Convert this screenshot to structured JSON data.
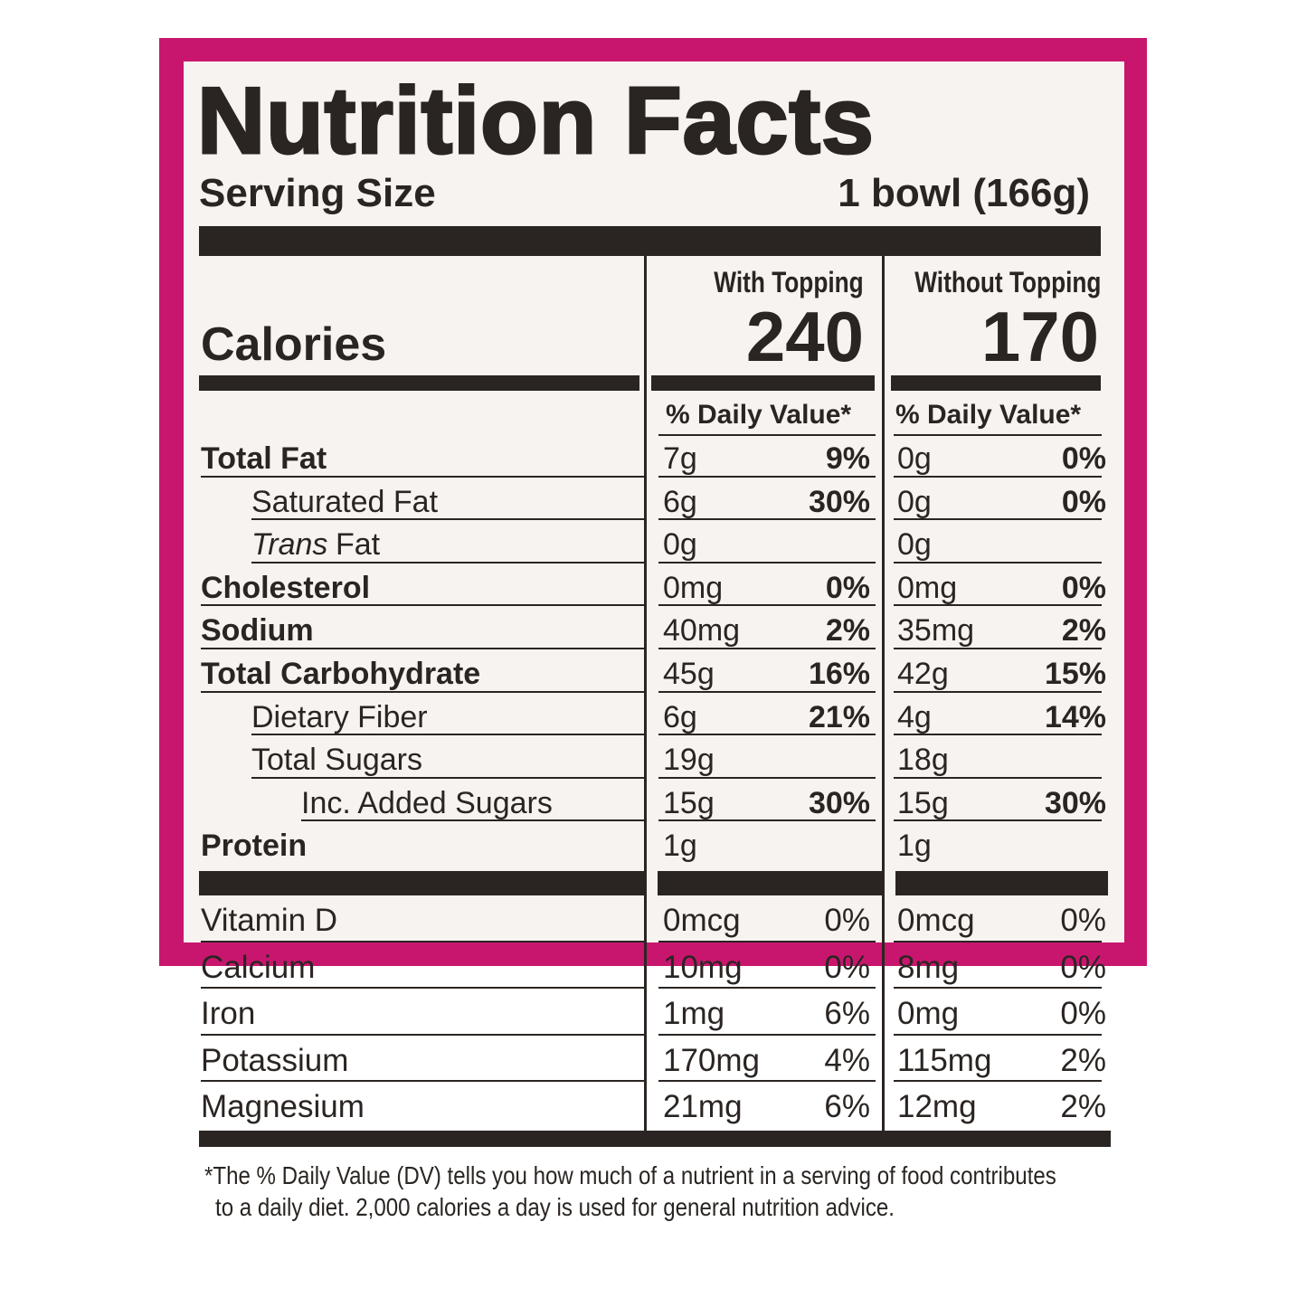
{
  "title": "Nutrition Facts",
  "serving": {
    "label": "Serving Size",
    "value": "1 bowl (166g)"
  },
  "calories": {
    "label": "Calories",
    "columns": [
      {
        "heading": "With Topping",
        "value": "240"
      },
      {
        "heading": "Without Topping",
        "value": "170"
      }
    ]
  },
  "daily_value_headers": [
    "% Daily Value*",
    "% Daily Value*"
  ],
  "nutrients": [
    {
      "name": "Total Fat",
      "with_topping": [
        "7g",
        "9%"
      ],
      "without_topping": [
        "0g",
        "0%"
      ]
    },
    {
      "name": "Saturated Fat",
      "with_topping": [
        "6g",
        "30%"
      ],
      "without_topping": [
        "0g",
        "0%"
      ]
    },
    {
      "name_italic": "Trans",
      "name": "Fat",
      "with_topping": [
        "0g"
      ],
      "without_topping": [
        "0g"
      ]
    },
    {
      "name": "Cholesterol",
      "with_topping": [
        "0mg",
        "0%"
      ],
      "without_topping": [
        "0mg",
        "0%"
      ]
    },
    {
      "name": "Sodium",
      "with_topping": [
        "40mg",
        "2%"
      ],
      "without_topping": [
        "35mg",
        "2%"
      ]
    },
    {
      "name": "Total Carbohydrate",
      "with_topping": [
        "45g",
        "16%"
      ],
      "without_topping": [
        "42g",
        "15%"
      ]
    },
    {
      "name": "Dietary Fiber",
      "with_topping": [
        "6g",
        "21%"
      ],
      "without_topping": [
        "4g",
        "14%"
      ]
    },
    {
      "name": "Total Sugars",
      "with_topping": [
        "19g"
      ],
      "without_topping": [
        "18g"
      ]
    },
    {
      "name": "Inc. Added Sugars",
      "with_topping": [
        "15g",
        "30%"
      ],
      "without_topping": [
        "15g",
        "30%"
      ]
    },
    {
      "name": "Protein",
      "with_topping": [
        "1g"
      ],
      "without_topping": [
        "1g"
      ]
    }
  ],
  "vitamins": [
    {
      "name": "Vitamin D",
      "with_topping": [
        "0mcg",
        "0%"
      ],
      "without_topping": [
        "0mcg",
        "0%"
      ]
    },
    {
      "name": "Calcium",
      "with_topping": [
        "10mg",
        "0%"
      ],
      "without_topping": [
        "8mg",
        "0%"
      ]
    },
    {
      "name": "Iron",
      "with_topping": [
        "1mg",
        "6%"
      ],
      "without_topping": [
        "0mg",
        "0%"
      ]
    },
    {
      "name": "Potassium",
      "with_topping": [
        "170mg",
        "4%"
      ],
      "without_topping": [
        "115mg",
        "2%"
      ]
    },
    {
      "name": "Magnesium",
      "with_topping": [
        "21mg",
        "6%"
      ],
      "without_topping": [
        "12mg",
        "2%"
      ]
    }
  ],
  "footnote": [
    "*The % Daily Value (DV) tells you how much of a nutrient in a serving of food contributes",
    "to a daily diet. 2,000 calories a day is used for general nutrition advice."
  ]
}
